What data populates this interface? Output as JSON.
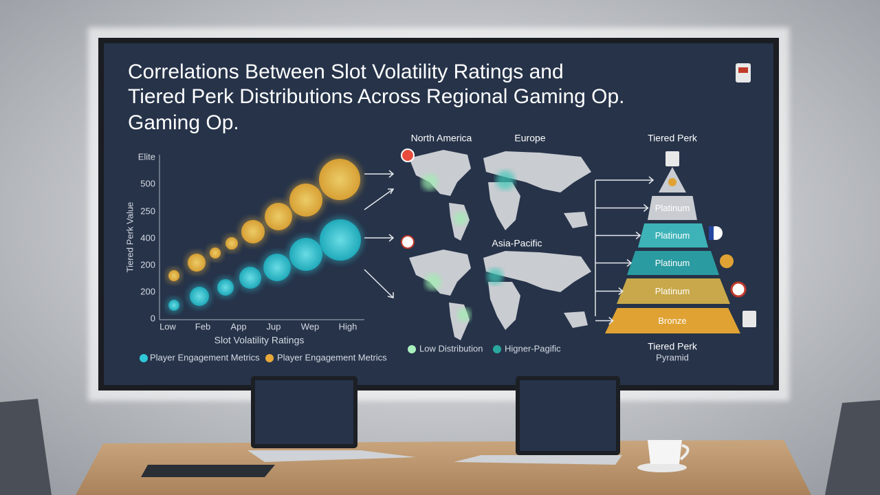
{
  "screen": {
    "title_lines": [
      "Correlations Between Slot Volatility Ratings and",
      "Tiered Perk Distributions Across Regional Gaming Op.",
      "Gaming Op."
    ],
    "bubble_chart": {
      "y_axis_label": "Tiered Perk Value",
      "x_axis_label": "Slot Volatility Ratings",
      "y_tick_labels": [
        "Elite",
        "500",
        "250",
        "400",
        "200",
        "200",
        "0"
      ],
      "x_tick_labels": [
        "Low",
        "Feb",
        "App",
        "Jup",
        "Wep",
        "High"
      ],
      "legend": [
        "Player Engagement Metrics",
        "Player Engagement Metrics"
      ]
    },
    "map": {
      "region_labels": [
        "North America",
        "Europe",
        "Asia-Pacific"
      ],
      "legend": [
        "Low Distribution",
        "Higner-Pagific"
      ]
    },
    "pyramid": {
      "title": "Tiered Perk",
      "tiers": [
        "Platinum",
        "Platinum",
        "Platinum",
        "Platinum",
        "Bronze"
      ],
      "caption_lines": [
        "Tiered Perk",
        "Pyramid"
      ]
    }
  }
}
